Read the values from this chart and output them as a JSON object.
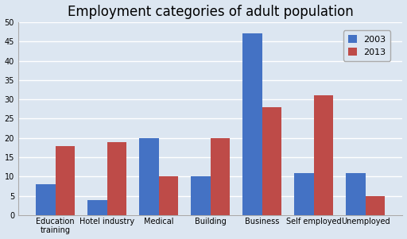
{
  "title": "Employment categories of adult population",
  "categories": [
    "Education\ntraining",
    "Hotel industry",
    "Medical",
    "Building",
    "Business",
    "Self employed",
    "Unemployed"
  ],
  "values_2003": [
    8,
    4,
    20,
    10,
    47,
    11,
    11
  ],
  "values_2013": [
    18,
    19,
    10,
    20,
    28,
    31,
    5
  ],
  "color_2003": "#4472C4",
  "color_2013": "#BE4B48",
  "legend_labels": [
    "2003",
    "2013"
  ],
  "ylim": [
    0,
    50
  ],
  "yticks": [
    0,
    5,
    10,
    15,
    20,
    25,
    30,
    35,
    40,
    45,
    50
  ],
  "bar_width": 0.38,
  "background_color": "#DCE6F1",
  "plot_bg_color": "#DCE6F1",
  "grid_color": "#FFFFFF",
  "title_fontsize": 12,
  "tick_fontsize": 7,
  "legend_fontsize": 8
}
